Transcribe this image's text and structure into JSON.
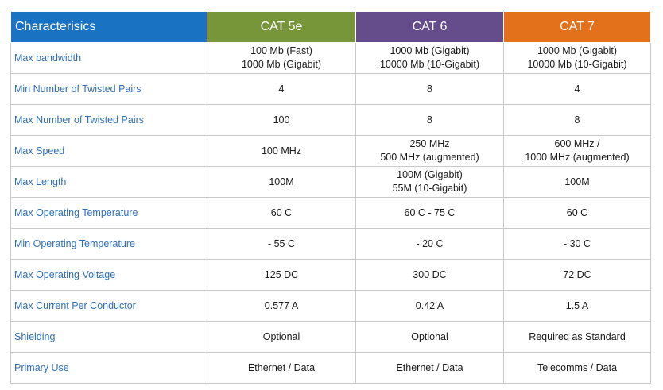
{
  "header": {
    "label": "Characterisics",
    "columns": [
      "CAT 5e",
      "CAT 6",
      "CAT 7"
    ],
    "colors": {
      "label": "#1a72c2",
      "cat5e": "#77963a",
      "cat6": "#654c8b",
      "cat7": "#e3711b"
    }
  },
  "rows": [
    {
      "label": "Max bandwidth",
      "cat5e": [
        "100 Mb (Fast)",
        "1000 Mb (Gigabit)"
      ],
      "cat6": [
        "1000 Mb (Gigabit)",
        "10000 Mb (10-Gigabit)"
      ],
      "cat7": [
        "1000 Mb (Gigabit)",
        "10000 Mb (10-Gigabit)"
      ]
    },
    {
      "label": "Min Number of Twisted Pairs",
      "cat5e": [
        "4"
      ],
      "cat6": [
        "8"
      ],
      "cat7": [
        "4"
      ]
    },
    {
      "label": "Max Number of Twisted Pairs",
      "cat5e": [
        "100"
      ],
      "cat6": [
        "8"
      ],
      "cat7": [
        "8"
      ]
    },
    {
      "label": "Max Speed",
      "cat5e": [
        "100 MHz"
      ],
      "cat6": [
        "250 MHz",
        "500 MHz (augmented)"
      ],
      "cat7": [
        "600 MHz /",
        "1000 MHz (augmented)"
      ]
    },
    {
      "label": "Max Length",
      "cat5e": [
        "100M"
      ],
      "cat6": [
        "100M (Gigabit)",
        "55M (10-Gigabit)"
      ],
      "cat7": [
        "100M"
      ]
    },
    {
      "label": "Max Operating Temperature",
      "cat5e": [
        "60 C"
      ],
      "cat6": [
        "60 C - 75 C"
      ],
      "cat7": [
        "60 C"
      ]
    },
    {
      "label": "Min Operating Temperature",
      "cat5e": [
        "- 55 C"
      ],
      "cat6": [
        "- 20 C"
      ],
      "cat7": [
        "- 30 C"
      ]
    },
    {
      "label": "Max Operating Voltage",
      "cat5e": [
        "125 DC"
      ],
      "cat6": [
        "300 DC"
      ],
      "cat7": [
        "72 DC"
      ]
    },
    {
      "label": "Max Current Per Conductor",
      "cat5e": [
        "0.577 A"
      ],
      "cat6": [
        "0.42 A"
      ],
      "cat7": [
        "1.5 A"
      ]
    },
    {
      "label": "Shielding",
      "cat5e": [
        "Optional"
      ],
      "cat6": [
        "Optional"
      ],
      "cat7": [
        "Required as Standard"
      ]
    },
    {
      "label": "Primary Use",
      "cat5e": [
        "Ethernet / Data"
      ],
      "cat6": [
        "Ethernet / Data"
      ],
      "cat7": [
        "Telecomms / Data"
      ]
    }
  ]
}
